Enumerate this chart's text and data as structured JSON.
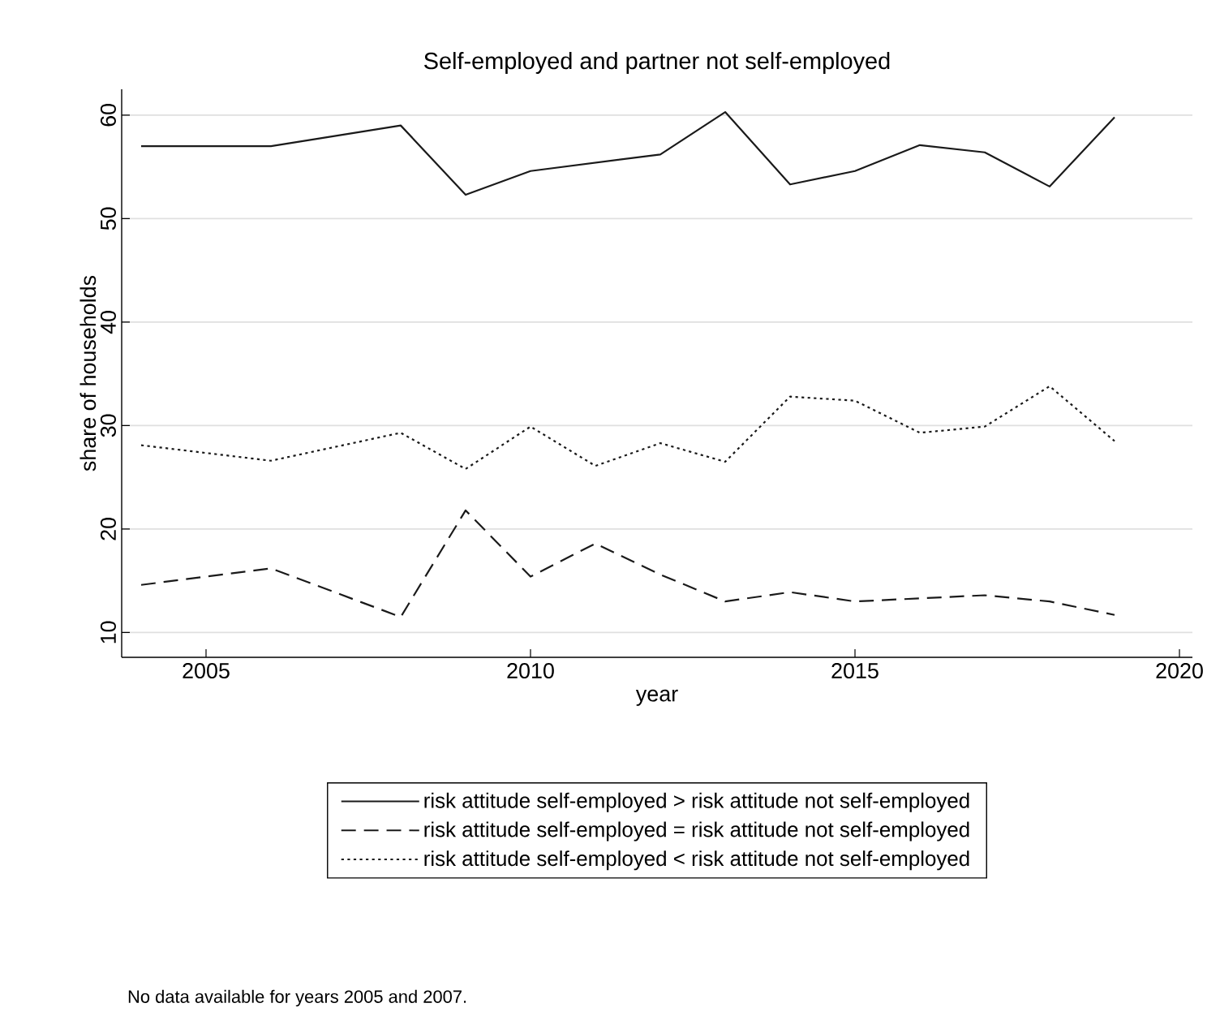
{
  "chart_data": {
    "type": "line",
    "title": "Self-employed and partner not self-employed",
    "xlabel": "year",
    "ylabel": "share of households",
    "x": [
      2004,
      2006,
      2008,
      2009,
      2010,
      2011,
      2012,
      2013,
      2014,
      2015,
      2016,
      2017,
      2018,
      2019
    ],
    "series": [
      {
        "name": "risk attitude self-employed > risk attitude not self-employed",
        "color": "#1a1a1a",
        "line_style": "solid",
        "values": [
          57,
          57,
          59,
          52.3,
          54.6,
          55.4,
          56.2,
          60.3,
          53.3,
          54.6,
          57.1,
          56.4,
          53.1,
          59.8
        ]
      },
      {
        "name": "risk attitude self-employed = risk attitude not self-employed",
        "color": "#1a1a1a",
        "line_style": "dashed",
        "values": [
          14.6,
          16.2,
          11.5,
          21.8,
          15.4,
          18.6,
          15.6,
          13.0,
          13.9,
          13.0,
          13.3,
          13.6,
          13.0,
          11.7
        ]
      },
      {
        "name": "risk attitude self-employed < risk attitude not self-employed",
        "color": "#1a1a1a",
        "line_style": "dotted",
        "values": [
          28.1,
          26.6,
          29.3,
          25.8,
          29.9,
          26.1,
          28.3,
          26.5,
          32.8,
          32.4,
          29.3,
          29.9,
          33.8,
          28.5
        ]
      }
    ],
    "xlim": [
      2003.7,
      2020.2
    ],
    "ylim": [
      7.6,
      62.5
    ],
    "xticks": [
      2005,
      2010,
      2015,
      2020
    ],
    "yticks": [
      10,
      20,
      30,
      40,
      50,
      60
    ],
    "grid": "y",
    "legend": "bottom",
    "marker": "none",
    "annotations": [
      "No data available for years 2005 and 2007."
    ]
  }
}
